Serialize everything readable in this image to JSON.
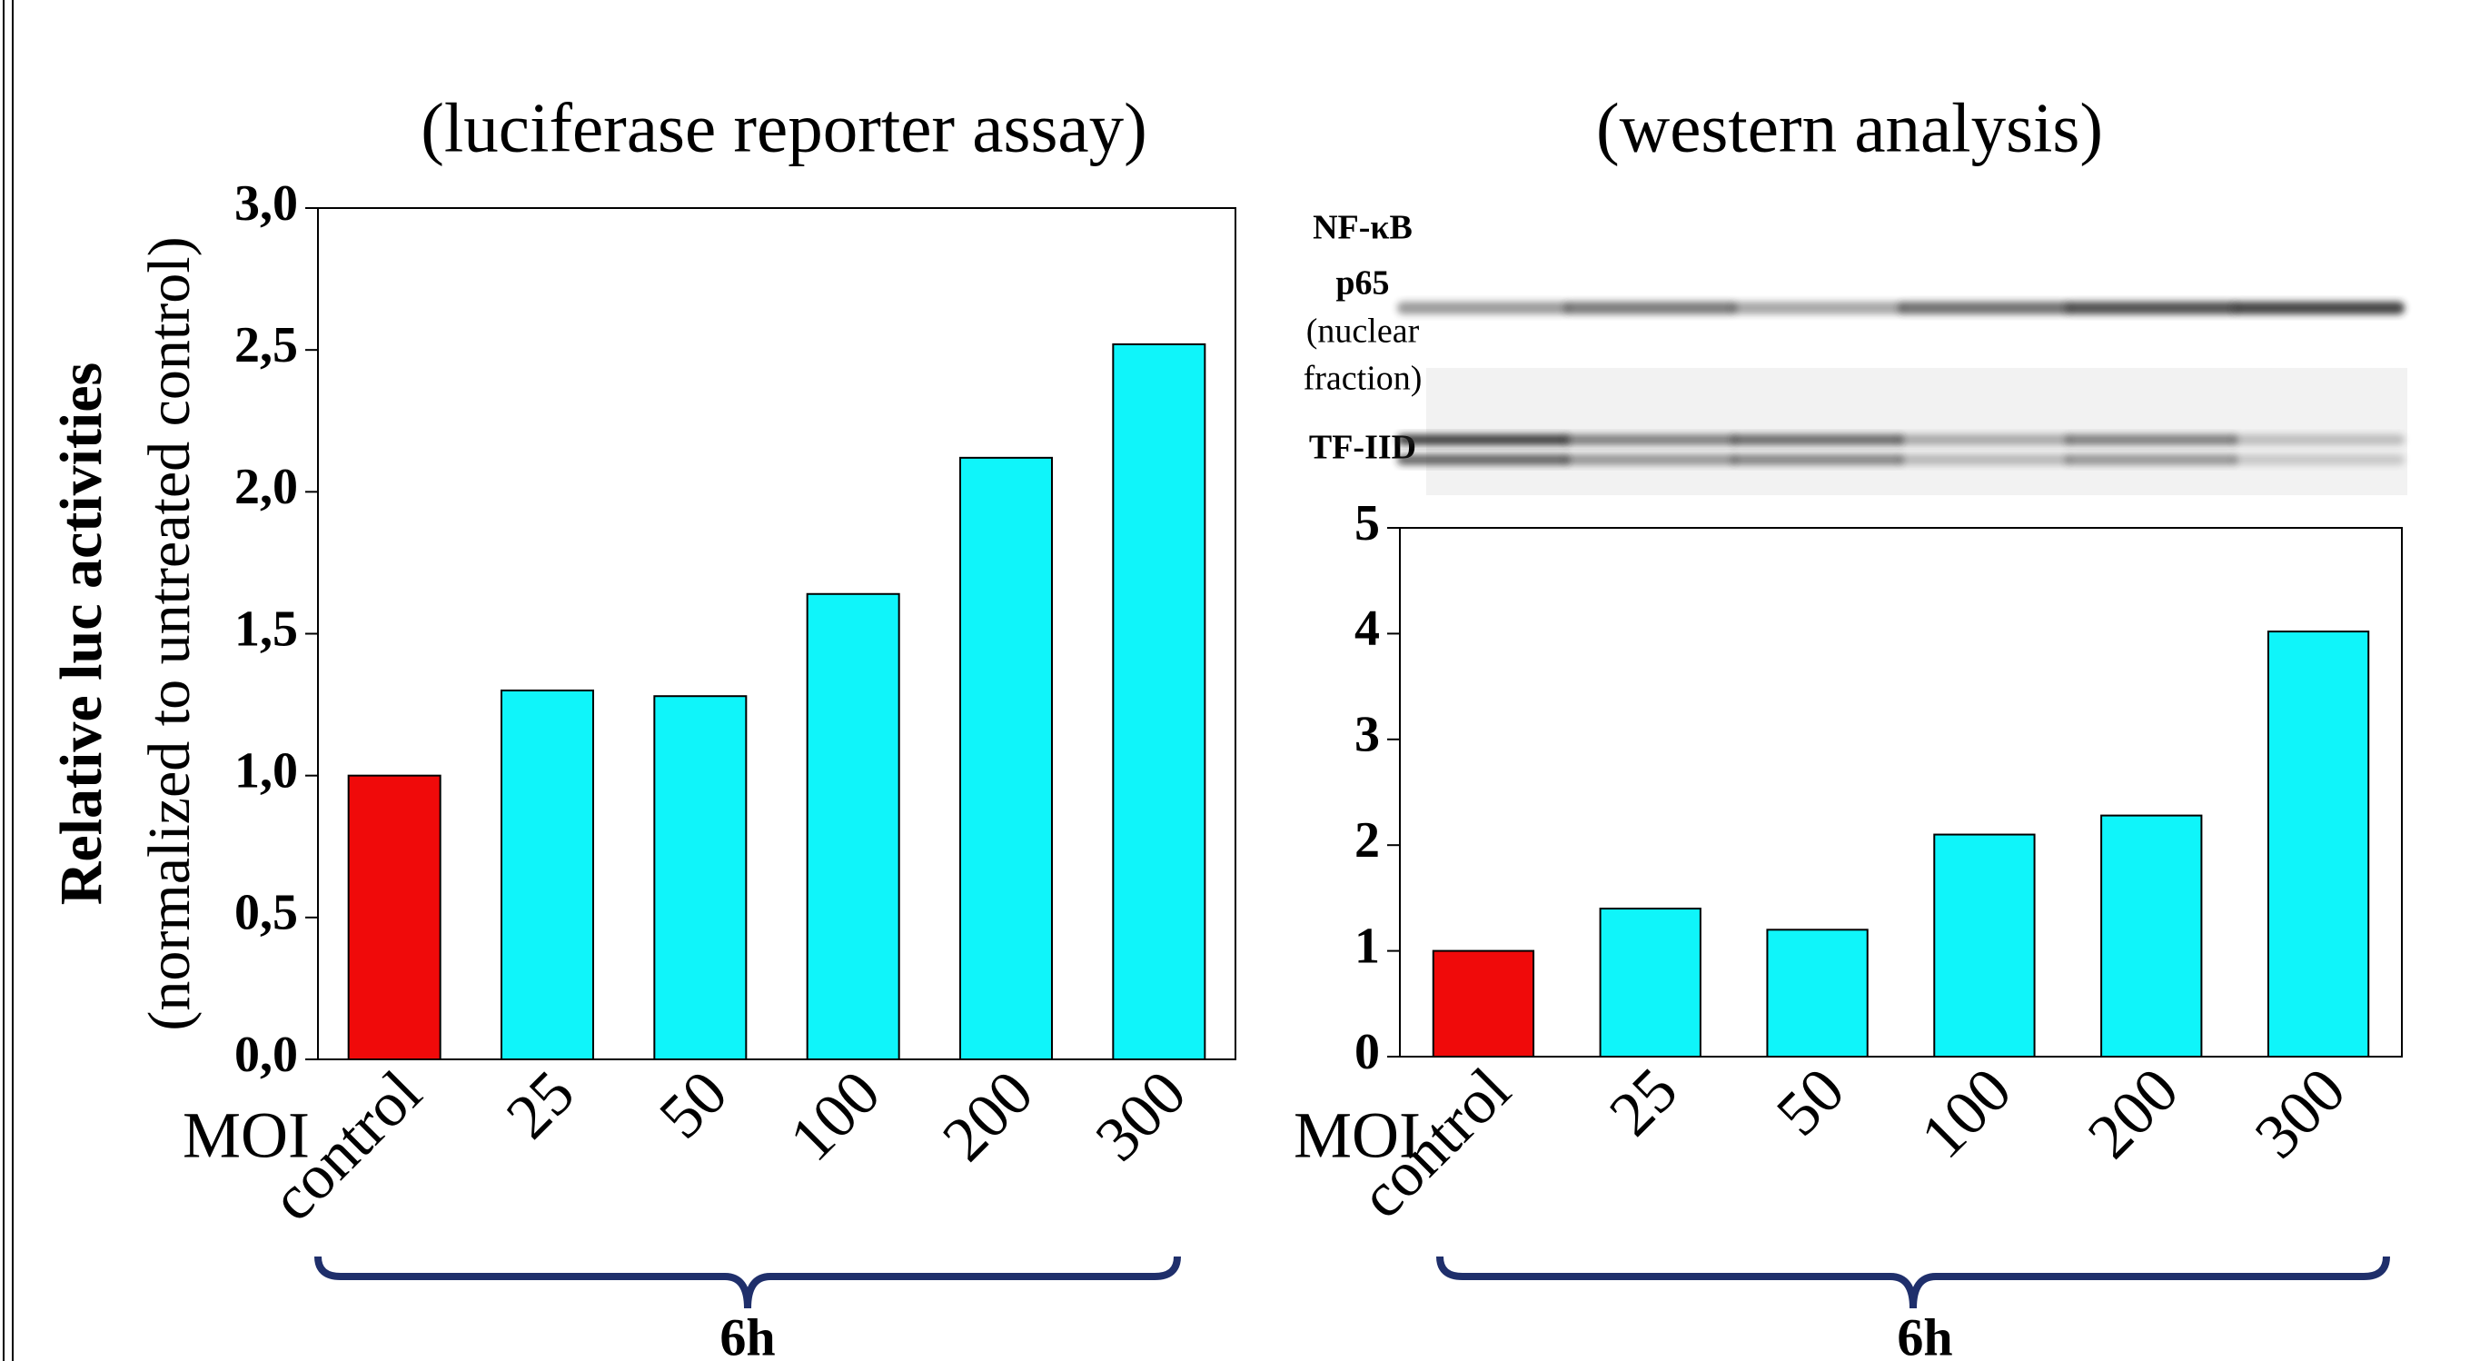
{
  "chart_data": [
    {
      "type": "bar",
      "subtitle": "(luciferase reporter assay)",
      "y_label": "Relative luc activities",
      "y_label_note": "(normalized to untreated control)",
      "x_label": "MOI",
      "group_label": "6h",
      "categories": [
        "control",
        "25",
        "50",
        "100",
        "200",
        "300"
      ],
      "values": [
        1.0,
        1.3,
        1.28,
        1.64,
        2.12,
        2.52
      ],
      "colors": [
        "#f00a0a",
        "#0ff5fa",
        "#0ff5fa",
        "#0ff5fa",
        "#0ff5fa",
        "#0ff5fa"
      ],
      "edgecolor": "#000000",
      "ylim": [
        0,
        3
      ],
      "yticks": [
        {
          "value": 0,
          "label": "0,0"
        },
        {
          "value": 0.5,
          "label": "0,5"
        },
        {
          "value": 1,
          "label": "1,0"
        },
        {
          "value": 1.5,
          "label": "1,5"
        },
        {
          "value": 2,
          "label": "2,0"
        },
        {
          "value": 2.5,
          "label": "2,5"
        },
        {
          "value": 3,
          "label": "3,0"
        }
      ]
    },
    {
      "type": "bar",
      "subtitle": "(western analysis)",
      "blot_labels": [
        "NF-κB",
        "p65",
        "(nuclear",
        "fraction)",
        "TF-IID"
      ],
      "x_label": "MOI",
      "group_label": "6h",
      "categories": [
        "control",
        "25",
        "50",
        "100",
        "200",
        "300"
      ],
      "values": [
        1.0,
        1.4,
        1.2,
        2.1,
        2.28,
        4.02
      ],
      "colors": [
        "#f00a0a",
        "#0ff5fa",
        "#0ff5fa",
        "#0ff5fa",
        "#0ff5fa",
        "#0ff5fa"
      ],
      "edgecolor": "#000000",
      "ylim": [
        0,
        5
      ],
      "yticks": [
        0,
        1,
        2,
        3,
        4,
        5
      ]
    }
  ]
}
